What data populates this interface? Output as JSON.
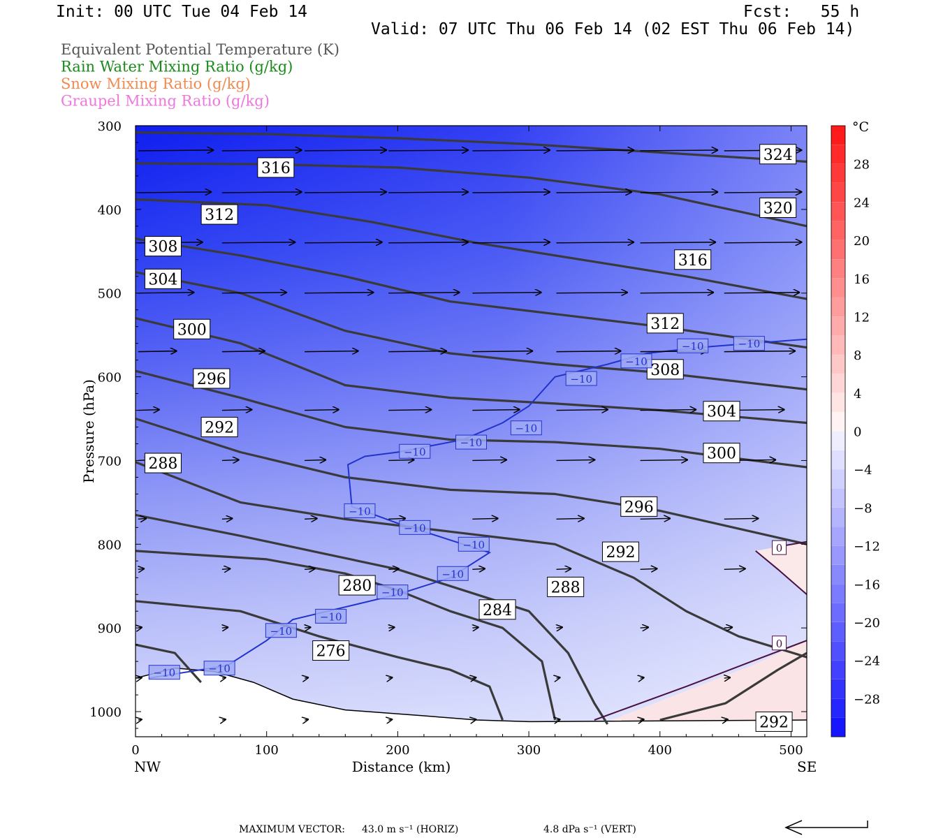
{
  "header": {
    "init": "Init: 00 UTC Tue 04 Feb 14",
    "fcst": "Fcst:   55 h",
    "valid": "Valid: 07 UTC Thu 06 Feb 14 (02 EST Thu 06 Feb 14)"
  },
  "legend": [
    {
      "label": "Equivalent Potential Temperature (K)",
      "color": "#555555"
    },
    {
      "label": "Rain Water Mixing Ratio (g/kg)",
      "color": "#1a8a1a"
    },
    {
      "label": "Snow Mixing Ratio (g/kg)",
      "color": "#f08a50"
    },
    {
      "label": "Graupel Mixing Ratio (g/kg)",
      "color": "#ee77dd"
    }
  ],
  "chart_data": {
    "type": "cross-section",
    "xlabel": "Distance (km)",
    "ylabel": "Pressure (hPa)",
    "x_ticks": [
      "0",
      "100",
      "200",
      "300",
      "400",
      "500"
    ],
    "x_tick_values": [
      0,
      100,
      200,
      300,
      400,
      500
    ],
    "y_ticks": [
      "300",
      "400",
      "500",
      "600",
      "700",
      "800",
      "900",
      "1000"
    ],
    "y_tick_values": [
      300,
      400,
      500,
      600,
      700,
      800,
      900,
      1000
    ],
    "xlim": [
      0,
      512
    ],
    "ylim": [
      300,
      1030
    ],
    "left_end_label": "NW",
    "right_end_label": "SE",
    "colorbar": {
      "unit": "°C",
      "labels": [
        "28",
        "24",
        "20",
        "16",
        "12",
        "8",
        "4",
        "0",
        "−4",
        "−8",
        "−12",
        "−16",
        "−20",
        "−24",
        "−28"
      ],
      "values": [
        28,
        24,
        20,
        16,
        12,
        8,
        4,
        0,
        -4,
        -8,
        -12,
        -16,
        -20,
        -24,
        -28
      ],
      "range": [
        -32,
        32
      ]
    },
    "theta_e_contours": [
      {
        "value": 324,
        "label": "324",
        "points": [
          [
            0,
            308
          ],
          [
            100,
            310
          ],
          [
            200,
            315
          ],
          [
            300,
            322
          ],
          [
            400,
            332
          ],
          [
            512,
            343
          ]
        ],
        "labels_at": [
          [
            490,
            334
          ]
        ]
      },
      {
        "value": 320,
        "label": "320",
        "points": [
          [
            0,
            345
          ],
          [
            100,
            346
          ],
          [
            200,
            350
          ],
          [
            300,
            362
          ],
          [
            400,
            382
          ],
          [
            512,
            420
          ]
        ],
        "labels_at": [
          [
            490,
            398
          ]
        ]
      },
      {
        "value": 316,
        "label": "316",
        "points": [
          [
            0,
            388
          ],
          [
            100,
            395
          ],
          [
            180,
            415
          ],
          [
            260,
            440
          ],
          [
            340,
            460
          ],
          [
            420,
            480
          ],
          [
            512,
            507
          ]
        ],
        "labels_at": [
          [
            107,
            350
          ],
          [
            425,
            460
          ]
        ]
      },
      {
        "value": 312,
        "label": "312",
        "points": [
          [
            0,
            435
          ],
          [
            80,
            455
          ],
          [
            160,
            480
          ],
          [
            240,
            510
          ],
          [
            320,
            525
          ],
          [
            400,
            540
          ],
          [
            512,
            565
          ]
        ],
        "labels_at": [
          [
            64,
            406
          ],
          [
            404,
            536
          ]
        ]
      },
      {
        "value": 308,
        "label": "308",
        "points": [
          [
            0,
            475
          ],
          [
            80,
            500
          ],
          [
            160,
            545
          ],
          [
            240,
            572
          ],
          [
            320,
            585
          ],
          [
            400,
            595
          ],
          [
            512,
            615
          ]
        ],
        "labels_at": [
          [
            21,
            444
          ],
          [
            404,
            591
          ]
        ]
      },
      {
        "value": 304,
        "label": "304",
        "points": [
          [
            0,
            530
          ],
          [
            80,
            560
          ],
          [
            160,
            610
          ],
          [
            240,
            625
          ],
          [
            320,
            632
          ],
          [
            400,
            640
          ],
          [
            512,
            655
          ]
        ],
        "labels_at": [
          [
            21,
            483
          ],
          [
            447,
            641
          ]
        ]
      },
      {
        "value": 300,
        "label": "300",
        "points": [
          [
            0,
            593
          ],
          [
            80,
            625
          ],
          [
            160,
            660
          ],
          [
            240,
            675
          ],
          [
            320,
            678
          ],
          [
            400,
            686
          ],
          [
            512,
            708
          ]
        ],
        "labels_at": [
          [
            43,
            543
          ],
          [
            447,
            691
          ]
        ]
      },
      {
        "value": 296,
        "label": "296",
        "points": [
          [
            0,
            650
          ],
          [
            80,
            690
          ],
          [
            160,
            720
          ],
          [
            240,
            735
          ],
          [
            320,
            740
          ],
          [
            400,
            760
          ],
          [
            512,
            800
          ]
        ],
        "labels_at": [
          [
            58,
            602
          ],
          [
            384,
            755
          ]
        ]
      },
      {
        "value": 292,
        "label": "292",
        "points": [
          [
            0,
            702
          ],
          [
            80,
            750
          ],
          [
            160,
            770
          ],
          [
            240,
            785
          ],
          [
            320,
            800
          ],
          [
            380,
            840
          ],
          [
            420,
            880
          ],
          [
            460,
            910
          ],
          [
            512,
            935
          ]
        ],
        "labels_at": [
          [
            64,
            660
          ],
          [
            370,
            809
          ]
        ]
      },
      {
        "value": 288,
        "label": "288",
        "points": [
          [
            0,
            765
          ],
          [
            80,
            790
          ],
          [
            140,
            810
          ],
          [
            200,
            830
          ],
          [
            260,
            860
          ],
          [
            300,
            880
          ],
          [
            330,
            930
          ],
          [
            350,
            990
          ],
          [
            360,
            1015
          ]
        ],
        "labels_at": [
          [
            21,
            703
          ],
          [
            328,
            851
          ]
        ]
      },
      {
        "value": 284,
        "label": "284",
        "points": [
          [
            0,
            808
          ],
          [
            100,
            818
          ],
          [
            160,
            835
          ],
          [
            200,
            855
          ],
          [
            240,
            880
          ],
          [
            280,
            900
          ],
          [
            310,
            940
          ],
          [
            320,
            1010
          ]
        ],
        "labels_at": [
          [
            276,
            878
          ]
        ]
      },
      {
        "value": 280,
        "label": "280",
        "points": [
          [
            0,
            868
          ],
          [
            80,
            880
          ],
          [
            140,
            910
          ],
          [
            200,
            935
          ],
          [
            240,
            950
          ],
          [
            270,
            970
          ],
          [
            280,
            1010
          ]
        ],
        "labels_at": [
          [
            169,
            849
          ]
        ]
      },
      {
        "value": 276,
        "label": "276",
        "points": [
          [
            0,
            920
          ],
          [
            30,
            930
          ],
          [
            50,
            965
          ]
        ],
        "labels_at": [
          [
            149,
            927
          ]
        ]
      },
      {
        "value": 292,
        "label": "292",
        "points": [
          [
            400,
            1010
          ],
          [
            450,
            990
          ],
          [
            490,
            950
          ],
          [
            512,
            930
          ]
        ],
        "labels_at": [
          [
            487,
            1012
          ]
        ]
      }
    ],
    "temperature_minus10_contour": {
      "value": -10,
      "points": [
        [
          10,
          960
        ],
        [
          70,
          945
        ],
        [
          100,
          915
        ],
        [
          120,
          890
        ],
        [
          160,
          875
        ],
        [
          200,
          860
        ],
        [
          240,
          840
        ],
        [
          270,
          810
        ],
        [
          250,
          800
        ],
        [
          200,
          775
        ],
        [
          165,
          755
        ],
        [
          162,
          705
        ],
        [
          175,
          695
        ],
        [
          200,
          690
        ],
        [
          250,
          675
        ],
        [
          280,
          655
        ],
        [
          300,
          635
        ],
        [
          320,
          600
        ],
        [
          360,
          585
        ],
        [
          390,
          572
        ],
        [
          430,
          565
        ],
        [
          470,
          560
        ],
        [
          512,
          555
        ]
      ],
      "labels": [
        [
          22,
          953
        ],
        [
          64,
          948
        ],
        [
          111,
          903
        ],
        [
          149,
          886
        ],
        [
          196,
          857
        ],
        [
          242,
          835
        ],
        [
          258,
          800
        ],
        [
          213,
          780
        ],
        [
          171,
          760
        ],
        [
          213,
          689
        ],
        [
          256,
          678
        ],
        [
          298,
          661
        ],
        [
          340,
          602
        ],
        [
          382,
          581
        ],
        [
          425,
          563
        ],
        [
          468,
          560
        ]
      ],
      "color": "#2233cc"
    },
    "zero_degree_contours": [
      {
        "value": 0,
        "points": [
          [
            350,
            1010
          ],
          [
            420,
            970
          ],
          [
            470,
            940
          ],
          [
            512,
            915
          ]
        ],
        "label_at": [
          491,
          918
        ]
      },
      {
        "value": 0,
        "points": [
          [
            473,
            808
          ],
          [
            490,
            830
          ],
          [
            512,
            860
          ]
        ],
        "label_at": [
          491,
          804
        ]
      },
      {
        "value": 0,
        "points": [
          [
            490,
            803
          ],
          [
            512,
            797
          ]
        ],
        "label_at": null
      }
    ],
    "terrain_surface": [
      [
        0,
        960
      ],
      [
        30,
        948
      ],
      [
        60,
        952
      ],
      [
        90,
        965
      ],
      [
        120,
        985
      ],
      [
        160,
        998
      ],
      [
        220,
        1005
      ],
      [
        260,
        1010
      ],
      [
        300,
        1012
      ],
      [
        512,
        1010
      ]
    ],
    "wind_vectors": {
      "x": [
        0,
        64,
        127,
        191,
        255,
        319,
        383,
        447
      ],
      "rows": [
        {
          "p": 330,
          "u": [
            35,
            37,
            38,
            37,
            36,
            36,
            36,
            36
          ]
        },
        {
          "p": 380,
          "u": [
            34,
            37,
            38,
            37,
            36,
            35,
            36,
            36
          ]
        },
        {
          "p": 440,
          "u": [
            30,
            34,
            36,
            37,
            36,
            36,
            35,
            36
          ]
        },
        {
          "p": 500,
          "u": [
            26,
            30,
            32,
            33,
            32,
            33,
            34,
            35
          ]
        },
        {
          "p": 570,
          "u": [
            18,
            20,
            25,
            27,
            28,
            30,
            31,
            33
          ]
        },
        {
          "p": 640,
          "u": [
            10,
            14,
            16,
            20,
            22,
            24,
            26,
            28
          ]
        },
        {
          "p": 700,
          "u": [
            6,
            8,
            10,
            12,
            16,
            18,
            22,
            24
          ]
        },
        {
          "p": 770,
          "u": [
            4,
            5,
            6,
            8,
            12,
            13,
            14,
            16
          ]
        },
        {
          "p": 830,
          "u": [
            3,
            4,
            5,
            5,
            6,
            7,
            8,
            10
          ]
        },
        {
          "p": 900,
          "u": [
            2,
            3,
            3,
            3,
            3,
            3,
            4,
            4
          ]
        },
        {
          "p": 960,
          "u": [
            0,
            1,
            1,
            2,
            1,
            1,
            1,
            3
          ]
        },
        {
          "p": 1010,
          "u": [
            0,
            0,
            0,
            1,
            1,
            1,
            1,
            1
          ]
        }
      ]
    },
    "footer": {
      "max_vector_label": "MAXIMUM VECTOR:",
      "horiz": "43.0 m s⁻¹ (HORIZ)",
      "vert": "4.8 dPa s⁻¹ (VERT)"
    }
  }
}
